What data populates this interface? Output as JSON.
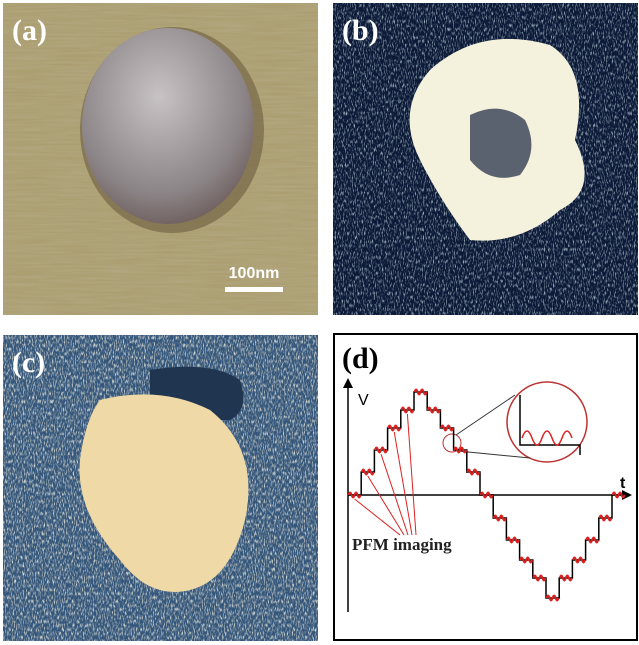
{
  "panels": [
    {
      "label": "(a)",
      "scale_bar": "100nm"
    },
    {
      "label": "(b)"
    },
    {
      "label": "(c)"
    },
    {
      "label": "(d)",
      "axis_y": "V",
      "axis_x": "t",
      "annotation": "PFM imaging"
    }
  ]
}
